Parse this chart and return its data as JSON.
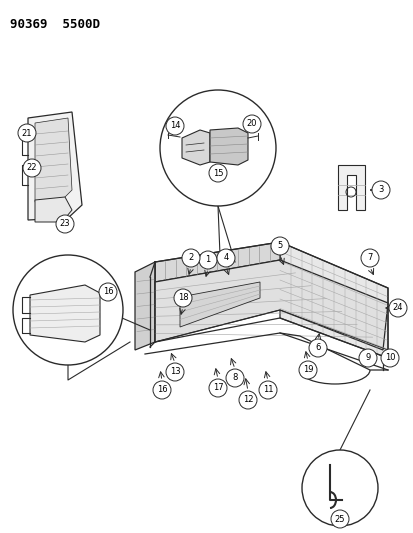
{
  "title": "90369  5500D",
  "bg_color": "#ffffff",
  "line_color": "#2a2a2a",
  "label_color": "#000000",
  "fig_width": 4.14,
  "fig_height": 5.33,
  "dpi": 100
}
